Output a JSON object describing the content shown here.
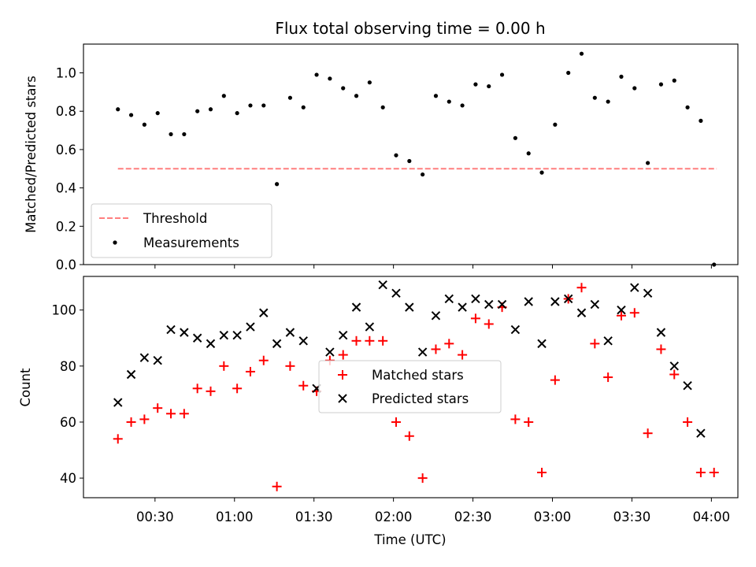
{
  "chart_data": [
    {
      "type": "scatter",
      "title": "Flux total observing time = 0.00 h",
      "ylabel": "Matched/Predicted stars",
      "xlabel": "",
      "ylim": [
        0,
        1.15
      ],
      "yticks": [
        0.0,
        0.2,
        0.4,
        0.6,
        0.8,
        1.0
      ],
      "ytick_labels": [
        "0.0",
        "0.2",
        "0.4",
        "0.6",
        "0.8",
        "1.0"
      ],
      "xlim": [
        "00:03",
        "04:10"
      ],
      "grid": false,
      "legend_position": "lower-left",
      "threshold": {
        "name": "Threshold",
        "color": "#ff7f7f",
        "style": "dashed",
        "x": [
          "00:16",
          "04:02"
        ],
        "y": [
          0.5,
          0.5
        ]
      },
      "series": [
        {
          "name": "Measurements",
          "color": "#000000",
          "marker": "dot",
          "x": [
            "00:16",
            "00:21",
            "00:26",
            "00:31",
            "00:36",
            "00:41",
            "00:46",
            "00:51",
            "00:56",
            "01:01",
            "01:06",
            "01:11",
            "01:16",
            "01:21",
            "01:26",
            "01:31",
            "01:36",
            "01:41",
            "01:46",
            "01:51",
            "01:56",
            "02:01",
            "02:06",
            "02:11",
            "02:16",
            "02:21",
            "02:26",
            "02:31",
            "02:36",
            "02:41",
            "02:46",
            "02:51",
            "02:56",
            "03:01",
            "03:06",
            "03:11",
            "03:16",
            "03:21",
            "03:26",
            "03:31",
            "03:36",
            "03:41",
            "03:46",
            "03:51",
            "03:56",
            "04:01"
          ],
          "y": [
            0.81,
            0.78,
            0.73,
            0.79,
            0.68,
            0.68,
            0.8,
            0.81,
            0.88,
            0.79,
            0.83,
            0.83,
            0.42,
            0.87,
            0.82,
            0.99,
            0.97,
            0.92,
            0.88,
            0.95,
            0.82,
            0.57,
            0.54,
            0.47,
            0.88,
            0.85,
            0.83,
            0.94,
            0.93,
            0.99,
            0.66,
            0.58,
            0.48,
            0.73,
            1.0,
            1.1,
            0.87,
            0.85,
            0.98,
            0.92,
            0.53,
            0.94,
            0.96,
            0.82,
            0.75,
            0.0
          ]
        }
      ]
    },
    {
      "type": "scatter",
      "title": "",
      "ylabel": "Count",
      "xlabel": "Time (UTC)",
      "ylim": [
        33,
        112
      ],
      "yticks": [
        40,
        60,
        80,
        100
      ],
      "ytick_labels": [
        "40",
        "60",
        "80",
        "100"
      ],
      "xlim": [
        "00:03",
        "04:10"
      ],
      "xticks": [
        "00:30",
        "01:00",
        "01:30",
        "02:00",
        "02:30",
        "03:00",
        "03:30",
        "04:00"
      ],
      "grid": false,
      "legend_position": "center",
      "series": [
        {
          "name": "Matched stars",
          "color": "#ff0000",
          "marker": "plus",
          "x": [
            "00:16",
            "00:21",
            "00:26",
            "00:31",
            "00:36",
            "00:41",
            "00:46",
            "00:51",
            "00:56",
            "01:01",
            "01:06",
            "01:11",
            "01:16",
            "01:21",
            "01:26",
            "01:31",
            "01:36",
            "01:41",
            "01:46",
            "01:51",
            "01:56",
            "02:01",
            "02:06",
            "02:11",
            "02:16",
            "02:21",
            "02:26",
            "02:31",
            "02:36",
            "02:41",
            "02:46",
            "02:51",
            "02:56",
            "03:01",
            "03:06",
            "03:11",
            "03:16",
            "03:21",
            "03:26",
            "03:31",
            "03:36",
            "03:41",
            "03:46",
            "03:51",
            "03:56",
            "04:01"
          ],
          "y": [
            54,
            60,
            61,
            65,
            63,
            63,
            72,
            71,
            80,
            72,
            78,
            82,
            37,
            80,
            73,
            71,
            82,
            84,
            89,
            89,
            89,
            60,
            55,
            40,
            86,
            88,
            84,
            97,
            95,
            101,
            61,
            60,
            42,
            75,
            104,
            108,
            88,
            76,
            98,
            99,
            56,
            86,
            77,
            60,
            42,
            42
          ]
        },
        {
          "name": "Predicted stars",
          "color": "#000000",
          "marker": "x",
          "x": [
            "00:16",
            "00:21",
            "00:26",
            "00:31",
            "00:36",
            "00:41",
            "00:46",
            "00:51",
            "00:56",
            "01:01",
            "01:06",
            "01:11",
            "01:16",
            "01:21",
            "01:26",
            "01:31",
            "01:36",
            "01:41",
            "01:46",
            "01:51",
            "01:56",
            "02:01",
            "02:06",
            "02:11",
            "02:16",
            "02:21",
            "02:26",
            "02:31",
            "02:36",
            "02:41",
            "02:46",
            "02:51",
            "02:56",
            "03:01",
            "03:06",
            "03:11",
            "03:16",
            "03:21",
            "03:26",
            "03:31",
            "03:36",
            "03:41",
            "03:46",
            "03:51",
            "03:56"
          ],
          "y": [
            67,
            77,
            83,
            82,
            93,
            92,
            90,
            88,
            91,
            91,
            94,
            99,
            88,
            92,
            89,
            72,
            85,
            91,
            101,
            94,
            109,
            106,
            101,
            85,
            98,
            104,
            101,
            104,
            102,
            102,
            93,
            103,
            88,
            103,
            104,
            99,
            102,
            89,
            100,
            108,
            106,
            92,
            80,
            73,
            56
          ]
        }
      ]
    }
  ]
}
